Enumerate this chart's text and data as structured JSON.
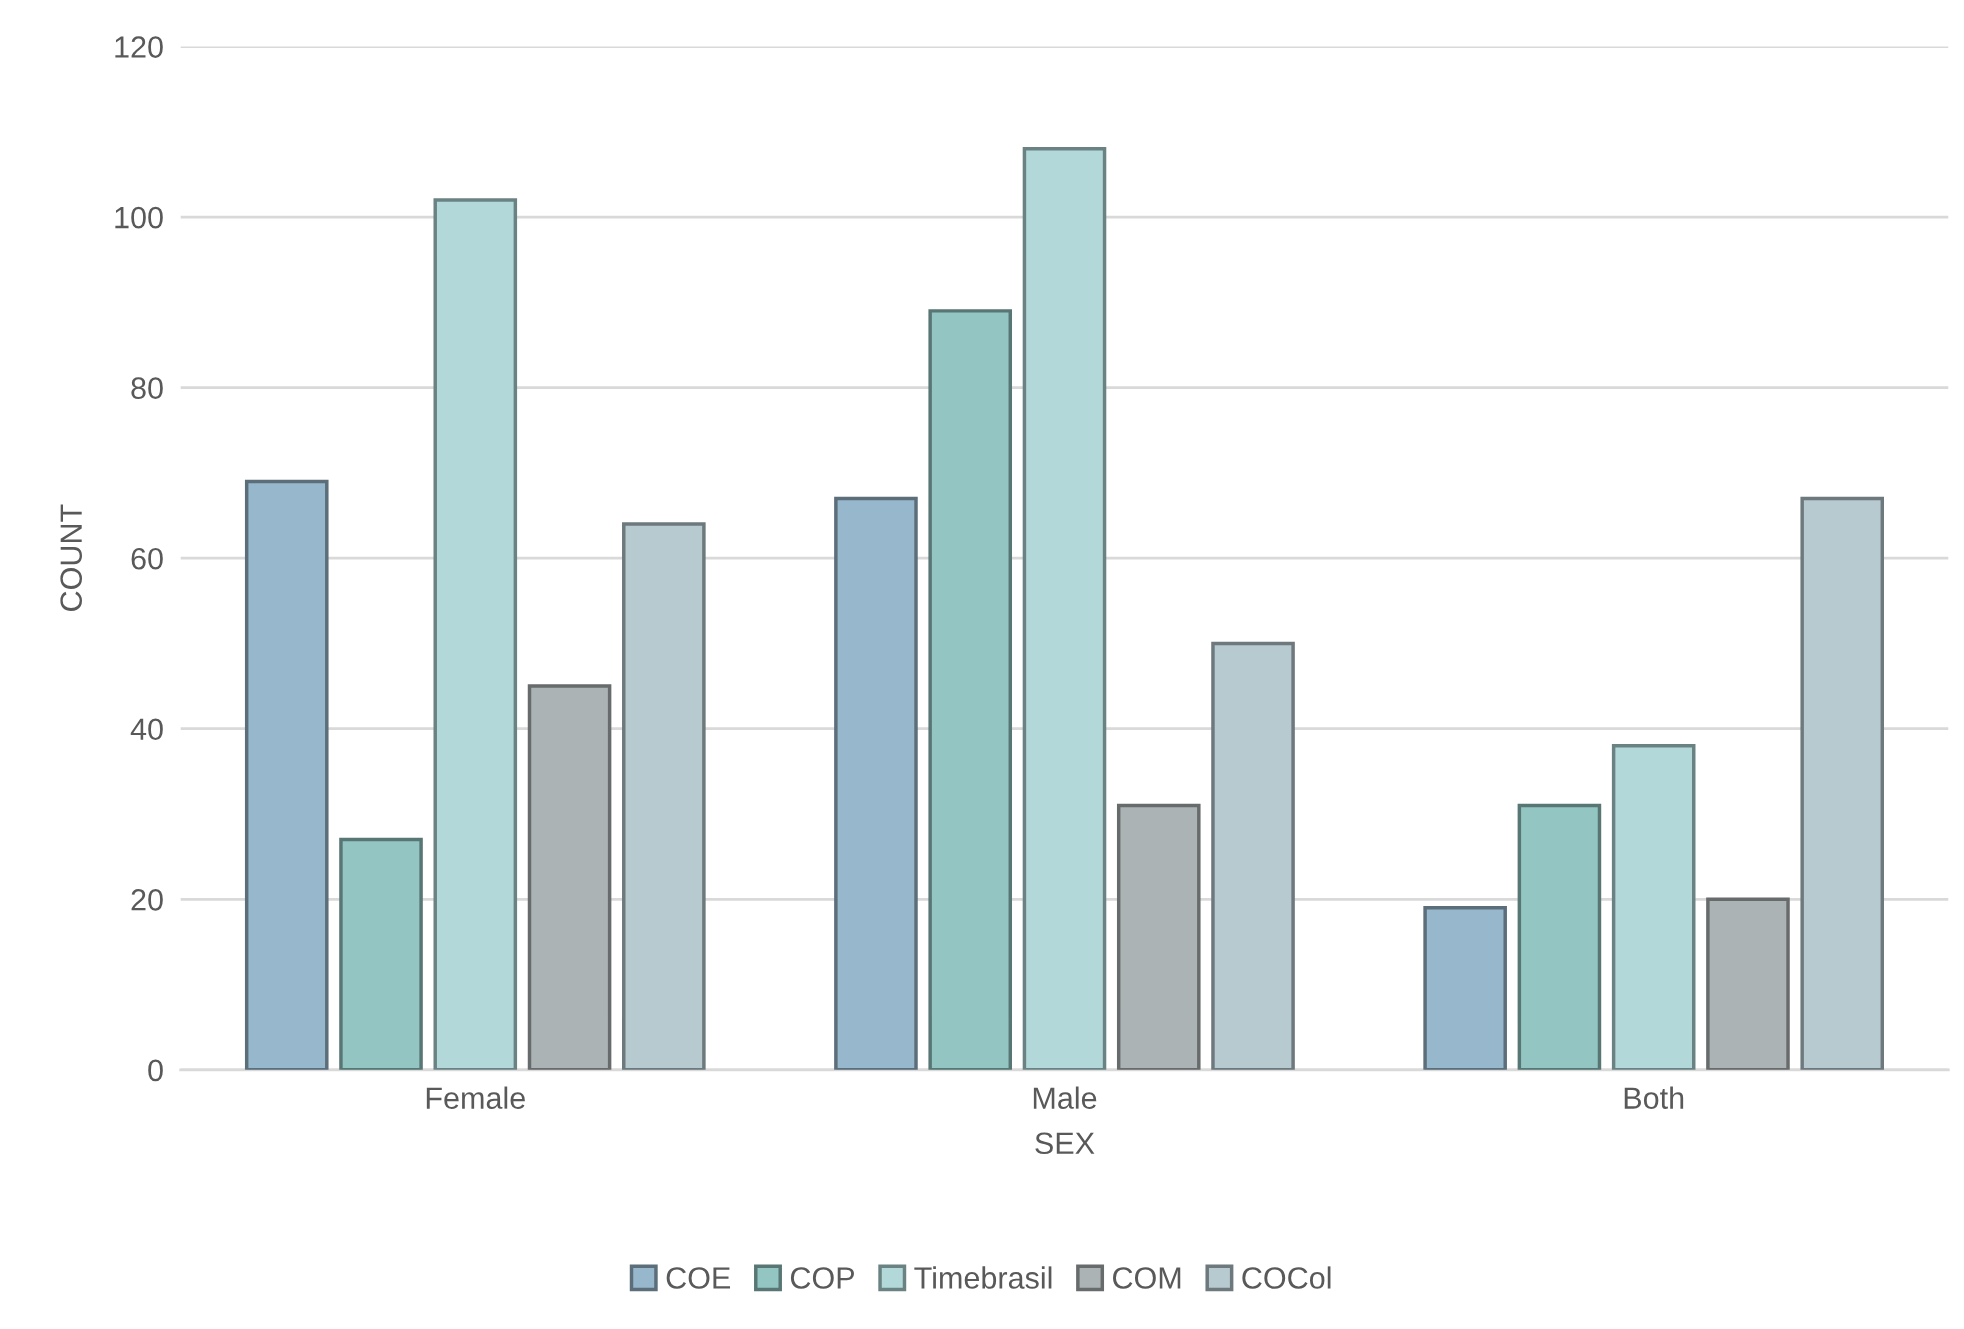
{
  "chart_data": {
    "type": "bar",
    "xlabel": "SEX",
    "ylabel": "COUNT",
    "categories": [
      "Female",
      "Male",
      "Both"
    ],
    "series": [
      {
        "name": "COE",
        "color": "#97b8cc",
        "values": [
          69,
          67,
          19
        ]
      },
      {
        "name": "COP",
        "color": "#93c6c2",
        "values": [
          27,
          89,
          31
        ]
      },
      {
        "name": "Timebrasil",
        "color": "#b2d8da",
        "values": [
          102,
          108,
          38
        ]
      },
      {
        "name": "COM",
        "color": "#abb3b4",
        "values": [
          45,
          31,
          20
        ]
      },
      {
        "name": "COCol",
        "color": "#b6cad0",
        "values": [
          64,
          50,
          67
        ]
      }
    ],
    "ylim": [
      0,
      120
    ],
    "yticks": [
      0,
      20,
      40,
      60,
      80,
      100,
      120
    ],
    "grid": "y",
    "legend": "bottom"
  }
}
